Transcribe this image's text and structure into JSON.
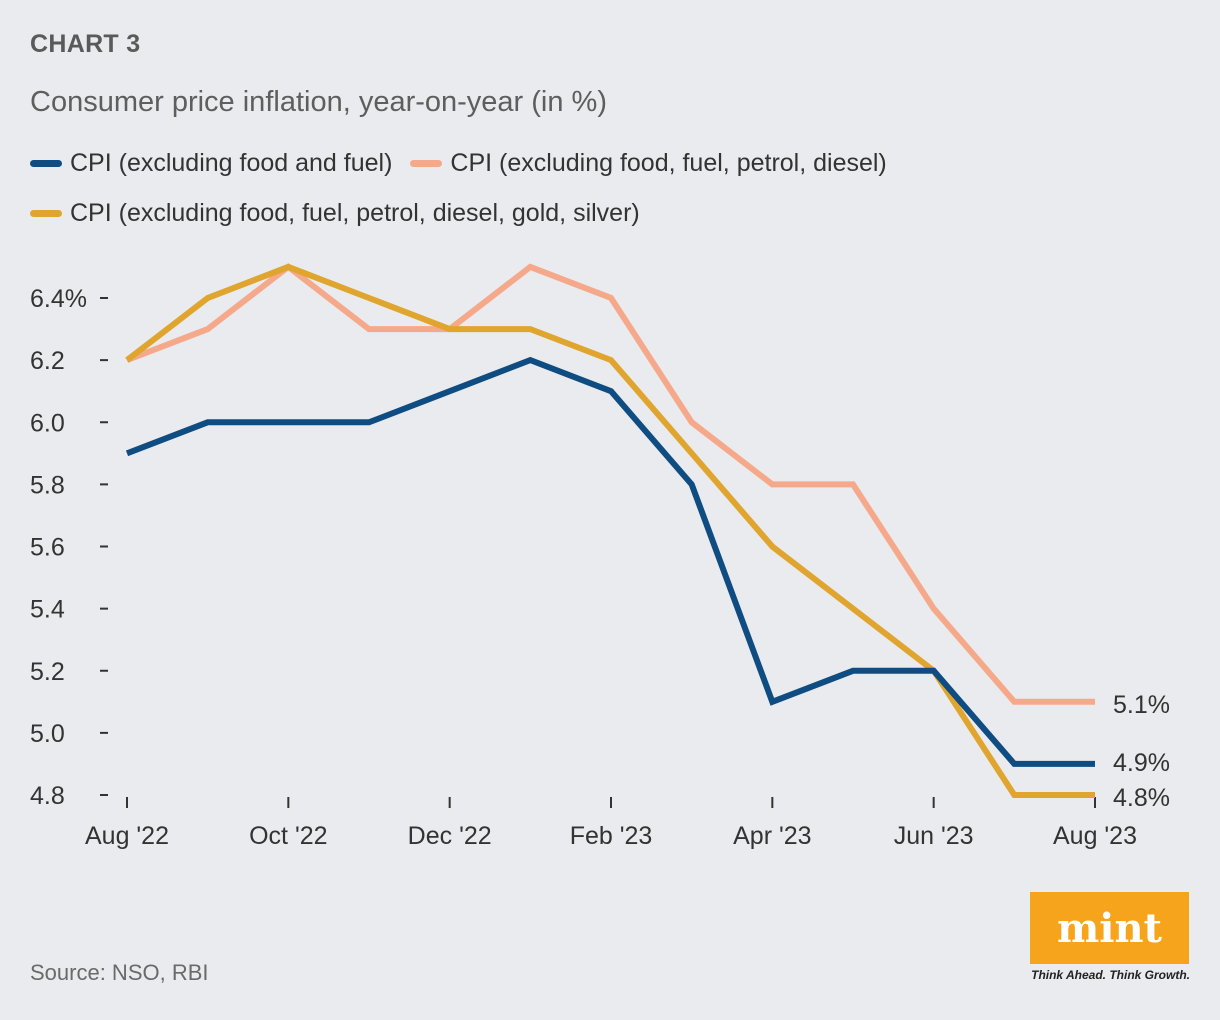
{
  "header": {
    "kicker": "CHART 3",
    "subtitle": "Consumer price inflation, year-on-year (in %)"
  },
  "source": "Source: NSO, RBI",
  "branding": {
    "logo": "mint",
    "tagline": "Think Ahead. Think Growth.",
    "color": "#f7a41d"
  },
  "chart_data": {
    "type": "line",
    "title": "Consumer price inflation, year-on-year (in %)",
    "xlabel": "",
    "ylabel": "",
    "ylim": [
      4.8,
      6.4
    ],
    "y_ticks": [
      "6.4%",
      "6.2",
      "6.0",
      "5.8",
      "5.6",
      "5.4",
      "5.2",
      "5.0",
      "4.8"
    ],
    "y_tick_values": [
      6.4,
      6.2,
      6.0,
      5.8,
      5.6,
      5.4,
      5.2,
      5.0,
      4.8
    ],
    "x": [
      "Aug '22",
      "Sep '22",
      "Oct '22",
      "Nov '22",
      "Dec '22",
      "Jan '23",
      "Feb '23",
      "Mar '23",
      "Apr '23",
      "May '23",
      "Jun '23",
      "Jul '23",
      "Aug '23"
    ],
    "x_tick_labels": [
      "Aug '22",
      "",
      "Oct '22",
      "",
      "Dec '22",
      "",
      "Feb '23",
      "",
      "Apr '23",
      "",
      "Jun '23",
      "",
      "Aug '23"
    ],
    "grid": false,
    "legend_position": "top-left",
    "series": [
      {
        "name": "CPI (excluding food and fuel)",
        "color": "#0f4c81",
        "values": [
          5.9,
          6.0,
          6.0,
          6.0,
          6.1,
          6.2,
          6.1,
          5.8,
          5.1,
          5.2,
          5.2,
          4.9,
          4.9
        ],
        "end_label": "4.9%"
      },
      {
        "name": "CPI (excluding food, fuel, petrol, diesel)",
        "color": "#f5a98a",
        "values": [
          6.2,
          6.3,
          6.5,
          6.3,
          6.3,
          6.5,
          6.4,
          6.0,
          5.8,
          5.8,
          5.4,
          5.1,
          5.1
        ],
        "end_label": "5.1%"
      },
      {
        "name": "CPI (excluding food, fuel, petrol, diesel, gold, silver)",
        "color": "#e0a52e",
        "values": [
          6.2,
          6.4,
          6.5,
          6.4,
          6.3,
          6.3,
          6.2,
          5.9,
          5.6,
          5.4,
          5.2,
          4.8,
          4.8
        ],
        "end_label": "4.8%"
      }
    ]
  }
}
